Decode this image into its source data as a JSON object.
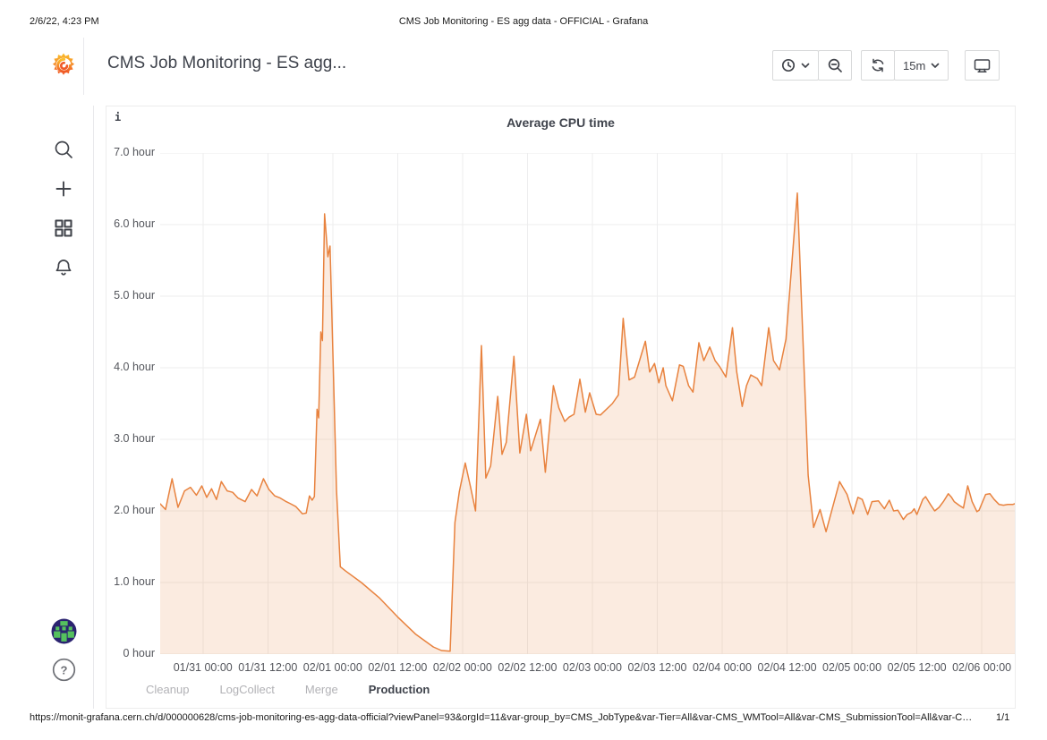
{
  "print_header": {
    "timestamp": "2/6/22, 4:23 PM",
    "doc_title": "CMS Job Monitoring - ES agg data - OFFICIAL - Grafana"
  },
  "print_footer": {
    "url": "https://monit-grafana.cern.ch/d/000000628/cms-job-monitoring-es-agg-data-official?viewPanel=93&orgId=11&var-group_by=CMS_JobType&var-Tier=All&var-CMS_WMTool=All&var-CMS_SubmissionTool=All&var-C…",
    "page_indicator": "1/1"
  },
  "navbar": {
    "dashboard_title": "CMS Job Monitoring - ES agg...",
    "refresh_interval": "15m"
  },
  "sidebar": {
    "icons": [
      "grafana-logo",
      "search",
      "create-plus",
      "dashboards-grid",
      "alerting-bell",
      "user-avatar",
      "help"
    ],
    "help_glyph": "?"
  },
  "panel": {
    "info_marker": "i",
    "title": "Average CPU time"
  },
  "chart_data": {
    "type": "area",
    "title": "Average CPU time",
    "unit": "hour",
    "grid": true,
    "legend_position": "bottom",
    "ylim": [
      0,
      7
    ],
    "time_span_hours": 158,
    "y_ticks": [
      {
        "value": 7,
        "label": "7.0 hour"
      },
      {
        "value": 6,
        "label": "6.0 hour"
      },
      {
        "value": 5,
        "label": "5.0 hour"
      },
      {
        "value": 4,
        "label": "4.0 hour"
      },
      {
        "value": 3,
        "label": "3.0 hour"
      },
      {
        "value": 2,
        "label": "2.0 hour"
      },
      {
        "value": 1,
        "label": "1.0 hour"
      },
      {
        "value": 0,
        "label": "0 hour"
      }
    ],
    "x_ticks": [
      {
        "hours": 7.9,
        "label": "01/31 00:00"
      },
      {
        "hours": 19.9,
        "label": "01/31 12:00"
      },
      {
        "hours": 31.9,
        "label": "02/01 00:00"
      },
      {
        "hours": 43.9,
        "label": "02/01 12:00"
      },
      {
        "hours": 55.9,
        "label": "02/02 00:00"
      },
      {
        "hours": 67.9,
        "label": "02/02 12:00"
      },
      {
        "hours": 79.9,
        "label": "02/03 00:00"
      },
      {
        "hours": 91.9,
        "label": "02/03 12:00"
      },
      {
        "hours": 103.9,
        "label": "02/04 00:00"
      },
      {
        "hours": 115.9,
        "label": "02/04 12:00"
      },
      {
        "hours": 127.9,
        "label": "02/05 00:00"
      },
      {
        "hours": 139.9,
        "label": "02/05 12:00"
      },
      {
        "hours": 151.9,
        "label": "02/06 00:00"
      }
    ],
    "legend": {
      "items": [
        {
          "label": "Cleanup",
          "active": false
        },
        {
          "label": "LogCollect",
          "active": false
        },
        {
          "label": "Merge",
          "active": false
        },
        {
          "label": "Production",
          "active": true
        }
      ]
    },
    "series": [
      {
        "name": "Production",
        "color": "#E8823E",
        "fill_color": "#E8823E",
        "fill_opacity": 0.16,
        "points": [
          [
            0,
            2.1
          ],
          [
            1,
            2.02
          ],
          [
            2.2,
            2.45
          ],
          [
            3.3,
            2.05
          ],
          [
            4.5,
            2.28
          ],
          [
            5.6,
            2.33
          ],
          [
            6.7,
            2.22
          ],
          [
            7.7,
            2.35
          ],
          [
            8.6,
            2.19
          ],
          [
            9.5,
            2.31
          ],
          [
            10.4,
            2.16
          ],
          [
            11.3,
            2.41
          ],
          [
            12.4,
            2.28
          ],
          [
            13.4,
            2.26
          ],
          [
            14.4,
            2.18
          ],
          [
            15.7,
            2.13
          ],
          [
            16.9,
            2.3
          ],
          [
            17.9,
            2.21
          ],
          [
            19.1,
            2.45
          ],
          [
            20.1,
            2.3
          ],
          [
            21.2,
            2.21
          ],
          [
            22.2,
            2.18
          ],
          [
            23.3,
            2.13
          ],
          [
            24.1,
            2.1
          ],
          [
            25.1,
            2.06
          ],
          [
            26.3,
            1.96
          ],
          [
            27,
            1.97
          ],
          [
            27.6,
            2.21
          ],
          [
            28.1,
            2.15
          ],
          [
            28.5,
            2.2
          ],
          [
            29,
            3.42
          ],
          [
            29.3,
            3.3
          ],
          [
            29.7,
            4.5
          ],
          [
            30,
            4.38
          ],
          [
            30.4,
            6.15
          ],
          [
            31,
            5.55
          ],
          [
            31.4,
            5.7
          ],
          [
            31.9,
            4.3
          ],
          [
            32.6,
            2.3
          ],
          [
            33.3,
            1.22
          ],
          [
            34.3,
            1.16
          ],
          [
            37.2,
            1
          ],
          [
            40.6,
            0.78
          ],
          [
            43.9,
            0.52
          ],
          [
            47.2,
            0.28
          ],
          [
            50.5,
            0.1
          ],
          [
            52,
            0.05
          ],
          [
            53.6,
            0.04
          ],
          [
            54.5,
            1.84
          ],
          [
            55.3,
            2.27
          ],
          [
            56.4,
            2.67
          ],
          [
            57.4,
            2.33
          ],
          [
            58.3,
            2
          ],
          [
            59.4,
            4.31
          ],
          [
            60.2,
            2.46
          ],
          [
            61.1,
            2.63
          ],
          [
            62.4,
            3.6
          ],
          [
            63.2,
            2.79
          ],
          [
            64,
            2.96
          ],
          [
            65.4,
            4.16
          ],
          [
            66.5,
            2.81
          ],
          [
            67.7,
            3.35
          ],
          [
            68.5,
            2.84
          ],
          [
            70.3,
            3.28
          ],
          [
            71.2,
            2.54
          ],
          [
            72.7,
            3.75
          ],
          [
            73.7,
            3.44
          ],
          [
            74.8,
            3.25
          ],
          [
            75.6,
            3.31
          ],
          [
            76.5,
            3.35
          ],
          [
            77.6,
            3.84
          ],
          [
            78.6,
            3.38
          ],
          [
            79.4,
            3.65
          ],
          [
            80.6,
            3.35
          ],
          [
            81.4,
            3.34
          ],
          [
            83.6,
            3.5
          ],
          [
            84.7,
            3.62
          ],
          [
            85.6,
            4.69
          ],
          [
            86.7,
            3.83
          ],
          [
            87.7,
            3.87
          ],
          [
            89.7,
            4.37
          ],
          [
            90.5,
            3.94
          ],
          [
            91.4,
            4.06
          ],
          [
            92.2,
            3.79
          ],
          [
            93,
            4
          ],
          [
            93.5,
            3.75
          ],
          [
            94.7,
            3.54
          ],
          [
            96,
            4.04
          ],
          [
            96.7,
            4.02
          ],
          [
            97.7,
            3.75
          ],
          [
            98.5,
            3.66
          ],
          [
            99.6,
            4.35
          ],
          [
            100.5,
            4.1
          ],
          [
            101.6,
            4.29
          ],
          [
            102.6,
            4.1
          ],
          [
            103.4,
            4.02
          ],
          [
            104.6,
            3.87
          ],
          [
            105.8,
            4.56
          ],
          [
            106.6,
            3.94
          ],
          [
            107.6,
            3.46
          ],
          [
            108.4,
            3.75
          ],
          [
            109.2,
            3.9
          ],
          [
            110.4,
            3.85
          ],
          [
            111.2,
            3.75
          ],
          [
            112.5,
            4.56
          ],
          [
            113.4,
            4.1
          ],
          [
            114.5,
            3.97
          ],
          [
            115.7,
            4.4
          ],
          [
            117.8,
            6.44
          ],
          [
            119.8,
            2.5
          ],
          [
            120.8,
            1.77
          ],
          [
            122,
            2.02
          ],
          [
            123.1,
            1.71
          ],
          [
            125.6,
            2.41
          ],
          [
            127,
            2.23
          ],
          [
            128.1,
            1.96
          ],
          [
            129,
            2.19
          ],
          [
            129.8,
            2.16
          ],
          [
            130.8,
            1.95
          ],
          [
            131.6,
            2.13
          ],
          [
            132.8,
            2.14
          ],
          [
            133.9,
            2.03
          ],
          [
            134.8,
            2.15
          ],
          [
            135.6,
            2
          ],
          [
            136.4,
            2.01
          ],
          [
            137.4,
            1.88
          ],
          [
            138.1,
            1.95
          ],
          [
            138.9,
            1.98
          ],
          [
            139.4,
            2.03
          ],
          [
            139.9,
            1.95
          ],
          [
            141,
            2.16
          ],
          [
            141.5,
            2.2
          ],
          [
            142.4,
            2.09
          ],
          [
            143.2,
            2
          ],
          [
            144,
            2.05
          ],
          [
            144.8,
            2.13
          ],
          [
            145.7,
            2.24
          ],
          [
            146.3,
            2.19
          ],
          [
            146.8,
            2.13
          ],
          [
            147.7,
            2.08
          ],
          [
            148.5,
            2.04
          ],
          [
            149.3,
            2.35
          ],
          [
            150.1,
            2.13
          ],
          [
            151,
            1.99
          ],
          [
            151.4,
            2.01
          ],
          [
            152.6,
            2.23
          ],
          [
            153.4,
            2.24
          ],
          [
            154.2,
            2.16
          ],
          [
            155.1,
            2.09
          ],
          [
            155.9,
            2.08
          ],
          [
            156.7,
            2.09
          ],
          [
            157.6,
            2.09
          ],
          [
            158,
            2.1
          ]
        ]
      }
    ]
  }
}
